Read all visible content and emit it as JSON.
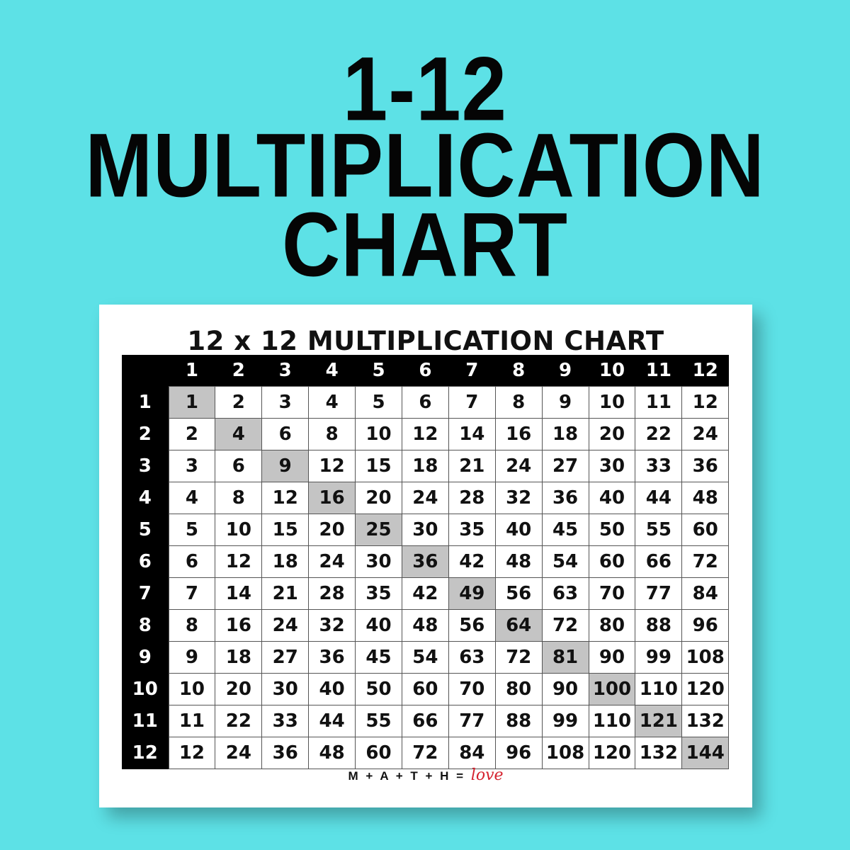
{
  "headline": {
    "line1": "1-12",
    "line2": "MULTIPLICATION",
    "line3": "CHART"
  },
  "card": {
    "title": "12 x 12 MULTIPLICATION CHART",
    "footer_math": "M + A + T + H = ",
    "footer_love": "love"
  },
  "colors": {
    "background": "#5de1e6",
    "diagonal_highlight": "#c4c4c4",
    "header": "#000000"
  },
  "table": {
    "column_headers": [
      "1",
      "2",
      "3",
      "4",
      "5",
      "6",
      "7",
      "8",
      "9",
      "10",
      "11",
      "12"
    ],
    "row_headers": [
      "1",
      "2",
      "3",
      "4",
      "5",
      "6",
      "7",
      "8",
      "9",
      "10",
      "11",
      "12"
    ],
    "rows": [
      [
        "1",
        "2",
        "3",
        "4",
        "5",
        "6",
        "7",
        "8",
        "9",
        "10",
        "11",
        "12"
      ],
      [
        "2",
        "4",
        "6",
        "8",
        "10",
        "12",
        "14",
        "16",
        "18",
        "20",
        "22",
        "24"
      ],
      [
        "3",
        "6",
        "9",
        "12",
        "15",
        "18",
        "21",
        "24",
        "27",
        "30",
        "33",
        "36"
      ],
      [
        "4",
        "8",
        "12",
        "16",
        "20",
        "24",
        "28",
        "32",
        "36",
        "40",
        "44",
        "48"
      ],
      [
        "5",
        "10",
        "15",
        "20",
        "25",
        "30",
        "35",
        "40",
        "45",
        "50",
        "55",
        "60"
      ],
      [
        "6",
        "12",
        "18",
        "24",
        "30",
        "36",
        "42",
        "48",
        "54",
        "60",
        "66",
        "72"
      ],
      [
        "7",
        "14",
        "21",
        "28",
        "35",
        "42",
        "49",
        "56",
        "63",
        "70",
        "77",
        "84"
      ],
      [
        "8",
        "16",
        "24",
        "32",
        "40",
        "48",
        "56",
        "64",
        "72",
        "80",
        "88",
        "96"
      ],
      [
        "9",
        "18",
        "27",
        "36",
        "45",
        "54",
        "63",
        "72",
        "81",
        "90",
        "99",
        "108"
      ],
      [
        "10",
        "20",
        "30",
        "40",
        "50",
        "60",
        "70",
        "80",
        "90",
        "100",
        "110",
        "120"
      ],
      [
        "11",
        "22",
        "33",
        "44",
        "55",
        "66",
        "77",
        "88",
        "99",
        "110",
        "121",
        "132"
      ],
      [
        "12",
        "24",
        "36",
        "48",
        "60",
        "72",
        "84",
        "96",
        "108",
        "120",
        "132",
        "144"
      ]
    ],
    "highlighted": "diagonal (squares)"
  }
}
